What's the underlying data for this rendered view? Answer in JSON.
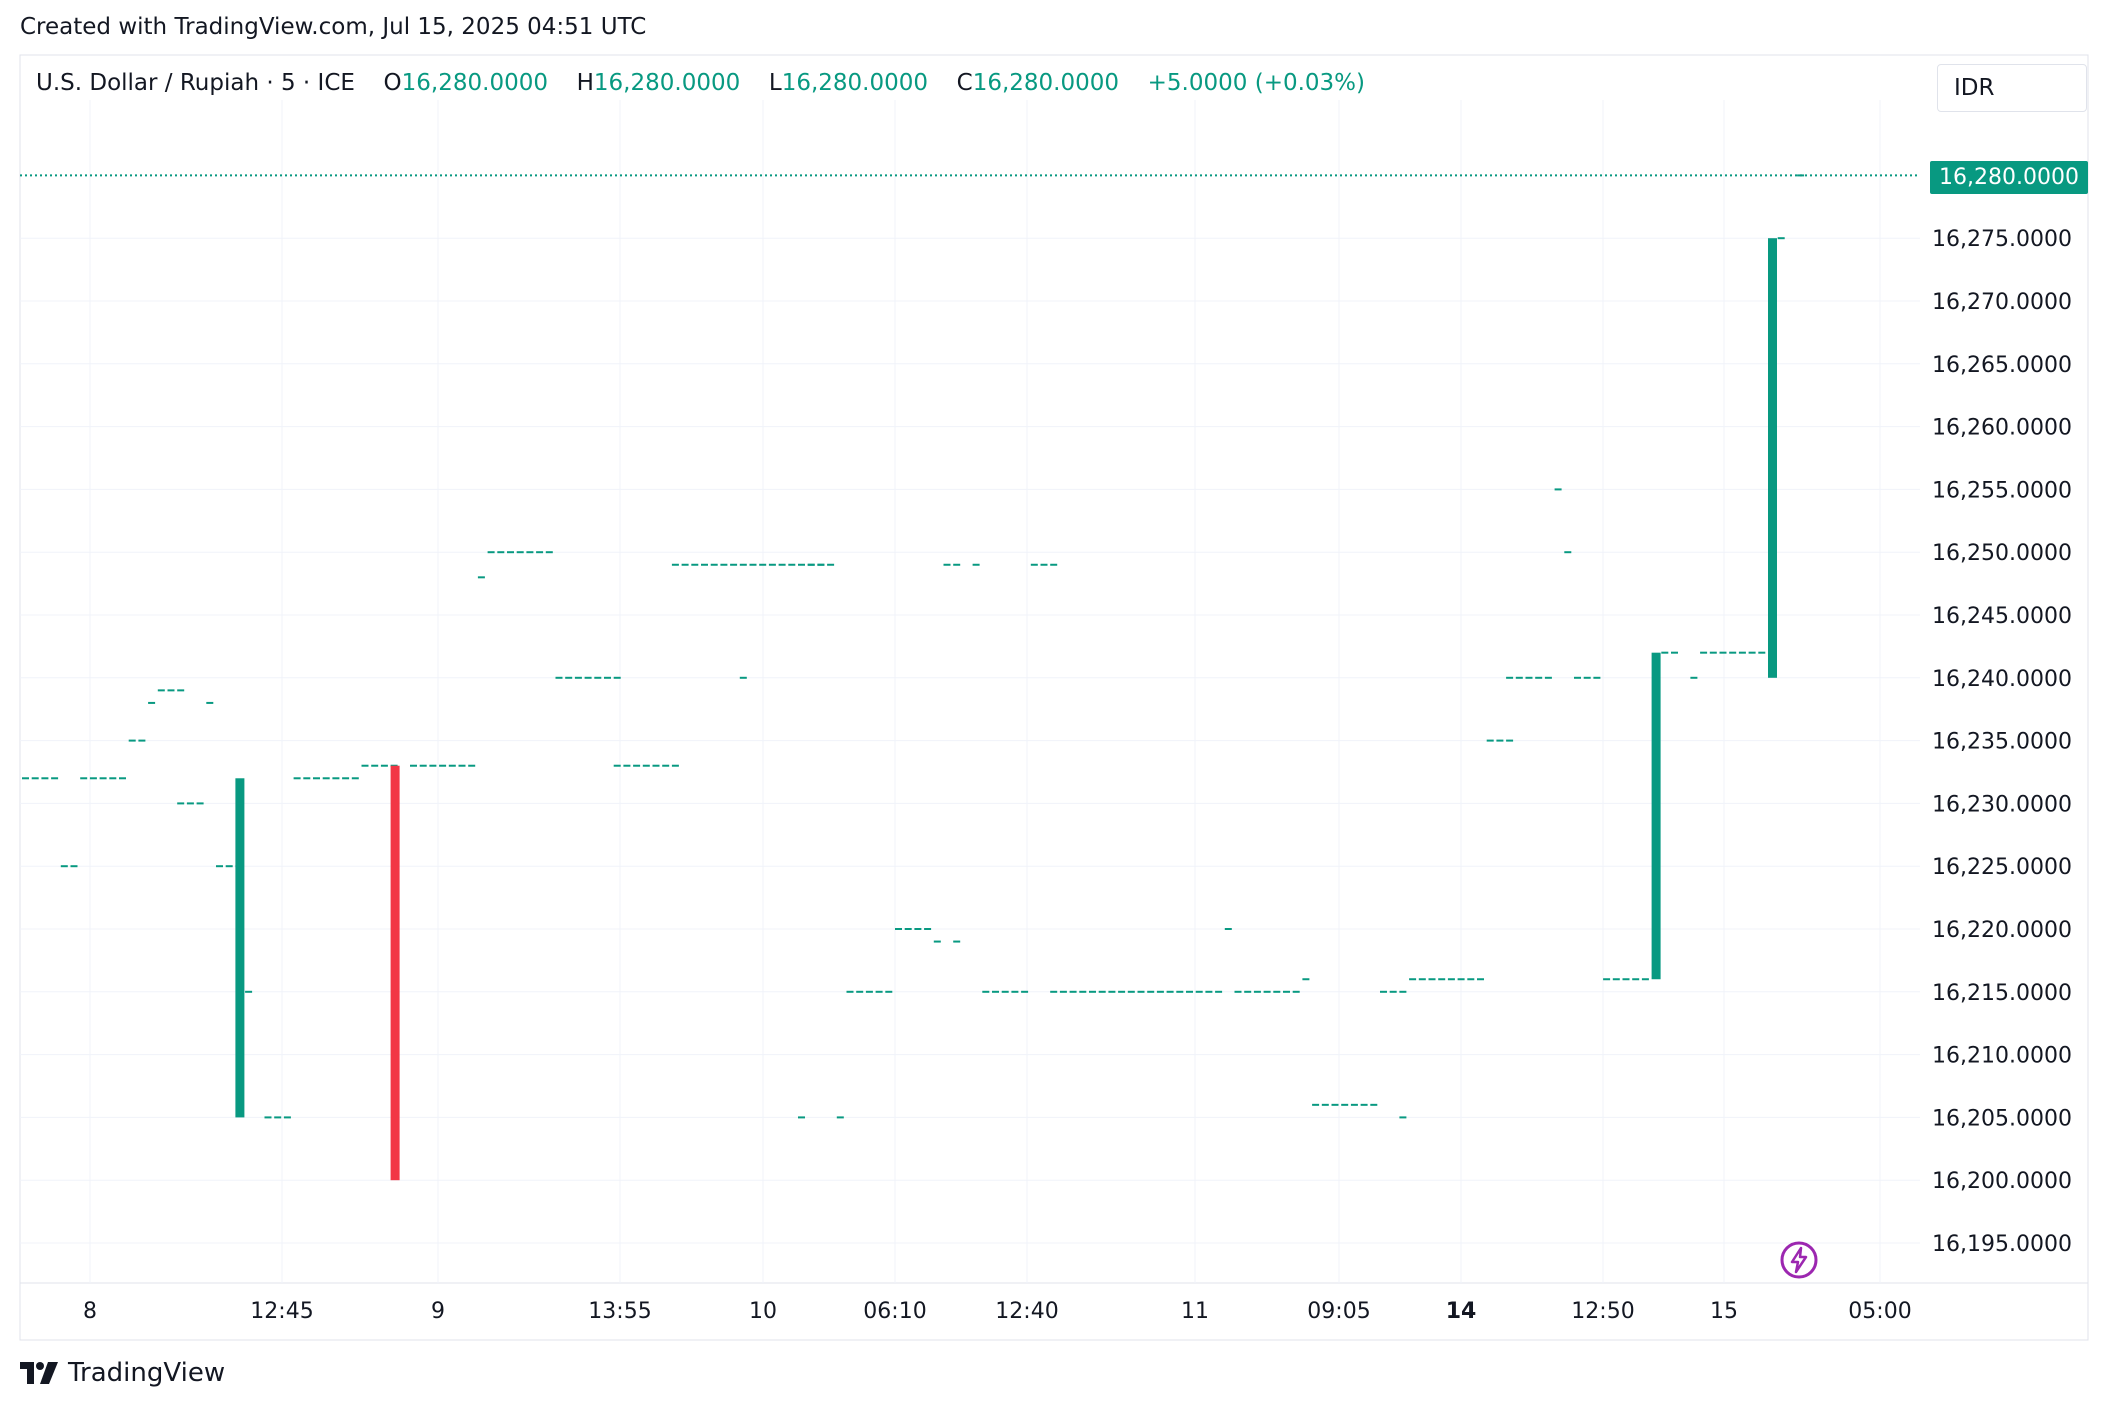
{
  "header": {
    "created_text": "Created with TradingView.com, Jul 15, 2025 04:51 UTC"
  },
  "legend": {
    "symbol": "U.S. Dollar / Rupiah · 5 · ICE",
    "open_label": "O",
    "open": "16,280.0000",
    "high_label": "H",
    "high": "16,280.0000",
    "low_label": "L",
    "low": "16,280.0000",
    "close_label": "C",
    "close": "16,280.0000",
    "change": "+5.0000 (+0.03%)"
  },
  "currency_button": "IDR",
  "last_price_tag": "16,280.0000",
  "brand": {
    "name": "TradingView",
    "logo_icon": "tradingview-logo-icon"
  },
  "colors": {
    "up": "#089981",
    "down": "#F23645",
    "grid": "#f0f3fa",
    "text": "#131722",
    "bolt": "#9c27b0"
  },
  "chart_data": {
    "type": "candlestick",
    "title": "U.S. Dollar / Rupiah · 5 · ICE",
    "y_range": [
      16190,
      16285
    ],
    "y_ticks": [
      "16,195.0000",
      "16,200.0000",
      "16,205.0000",
      "16,210.0000",
      "16,215.0000",
      "16,220.0000",
      "16,225.0000",
      "16,230.0000",
      "16,235.0000",
      "16,240.0000",
      "16,245.0000",
      "16,250.0000",
      "16,255.0000",
      "16,260.0000",
      "16,265.0000",
      "16,270.0000",
      "16,275.0000"
    ],
    "y_tick_values": [
      16195,
      16200,
      16205,
      16210,
      16215,
      16220,
      16225,
      16230,
      16235,
      16240,
      16245,
      16250,
      16255,
      16260,
      16265,
      16270,
      16275
    ],
    "x_ticks": [
      {
        "label": "8",
        "bold": false
      },
      {
        "label": "12:45",
        "bold": false
      },
      {
        "label": "9",
        "bold": false
      },
      {
        "label": "13:55",
        "bold": false
      },
      {
        "label": "10",
        "bold": false
      },
      {
        "label": "06:10",
        "bold": false
      },
      {
        "label": "12:40",
        "bold": false
      },
      {
        "label": "11",
        "bold": false
      },
      {
        "label": "09:05",
        "bold": false
      },
      {
        "label": "14",
        "bold": true
      },
      {
        "label": "12:50",
        "bold": false
      },
      {
        "label": "15",
        "bold": false
      },
      {
        "label": "05:00",
        "bold": false
      }
    ],
    "last_price": 16280,
    "flat_segments": [
      {
        "from": 0,
        "to": 3,
        "price": 16232
      },
      {
        "from": 4,
        "to": 5,
        "price": 16225
      },
      {
        "from": 6,
        "to": 10,
        "price": 16232
      },
      {
        "from": 11,
        "to": 12,
        "price": 16235
      },
      {
        "from": 13,
        "to": 13,
        "price": 16238
      },
      {
        "from": 14,
        "to": 16,
        "price": 16239
      },
      {
        "from": 16,
        "to": 18,
        "price": 16230
      },
      {
        "from": 19,
        "to": 19,
        "price": 16238
      },
      {
        "from": 20,
        "to": 22,
        "price": 16225
      },
      {
        "from": 23,
        "to": 23,
        "price": 16215
      },
      {
        "from": 25,
        "to": 27,
        "price": 16205
      },
      {
        "from": 28,
        "to": 34,
        "price": 16232
      },
      {
        "from": 35,
        "to": 38,
        "price": 16233
      },
      {
        "from": 40,
        "to": 46,
        "price": 16233
      },
      {
        "from": 47,
        "to": 47,
        "price": 16248
      },
      {
        "from": 48,
        "to": 54,
        "price": 16250
      },
      {
        "from": 55,
        "to": 61,
        "price": 16240
      },
      {
        "from": 61,
        "to": 67,
        "price": 16233
      },
      {
        "from": 67,
        "to": 77,
        "price": 16249
      },
      {
        "from": 74,
        "to": 74,
        "price": 16240
      },
      {
        "from": 78,
        "to": 83,
        "price": 16249
      },
      {
        "from": 80,
        "to": 80,
        "price": 16205
      },
      {
        "from": 84,
        "to": 84,
        "price": 16205
      },
      {
        "from": 81,
        "to": 82,
        "price": 16249
      },
      {
        "from": 85,
        "to": 89,
        "price": 16215
      },
      {
        "from": 90,
        "to": 93,
        "price": 16220
      },
      {
        "from": 94,
        "to": 94,
        "price": 16219
      },
      {
        "from": 95,
        "to": 96,
        "price": 16249
      },
      {
        "from": 96,
        "to": 96,
        "price": 16219
      },
      {
        "from": 98,
        "to": 98,
        "price": 16249
      },
      {
        "from": 99,
        "to": 103,
        "price": 16215
      },
      {
        "from": 104,
        "to": 106,
        "price": 16249
      },
      {
        "from": 106,
        "to": 123,
        "price": 16215
      },
      {
        "from": 124,
        "to": 124,
        "price": 16220
      },
      {
        "from": 125,
        "to": 131,
        "price": 16215
      },
      {
        "from": 132,
        "to": 132,
        "price": 16216
      },
      {
        "from": 133,
        "to": 139,
        "price": 16206
      },
      {
        "from": 140,
        "to": 142,
        "price": 16215
      },
      {
        "from": 142,
        "to": 142,
        "price": 16205
      },
      {
        "from": 143,
        "to": 150,
        "price": 16216
      },
      {
        "from": 151,
        "to": 153,
        "price": 16235
      },
      {
        "from": 153,
        "to": 157,
        "price": 16240
      },
      {
        "from": 158,
        "to": 158,
        "price": 16255
      },
      {
        "from": 159,
        "to": 159,
        "price": 16250
      },
      {
        "from": 160,
        "to": 162,
        "price": 16240
      },
      {
        "from": 163,
        "to": 167,
        "price": 16216
      },
      {
        "from": 169,
        "to": 170,
        "price": 16242
      },
      {
        "from": 172,
        "to": 172,
        "price": 16240
      },
      {
        "from": 173,
        "to": 179,
        "price": 16242
      },
      {
        "from": 181,
        "to": 181,
        "price": 16275
      },
      {
        "from": 183,
        "to": 183,
        "price": 16280
      }
    ],
    "candles": [
      {
        "index": 22,
        "open": 16205,
        "high": 16232,
        "low": 16205,
        "close": 16232
      },
      {
        "index": 38,
        "open": 16233,
        "high": 16233,
        "low": 16200,
        "close": 16200
      },
      {
        "index": 168,
        "open": 16216,
        "high": 16242,
        "low": 16216,
        "close": 16242
      },
      {
        "index": 180,
        "open": 16240,
        "high": 16275,
        "low": 16240,
        "close": 16275
      }
    ]
  }
}
